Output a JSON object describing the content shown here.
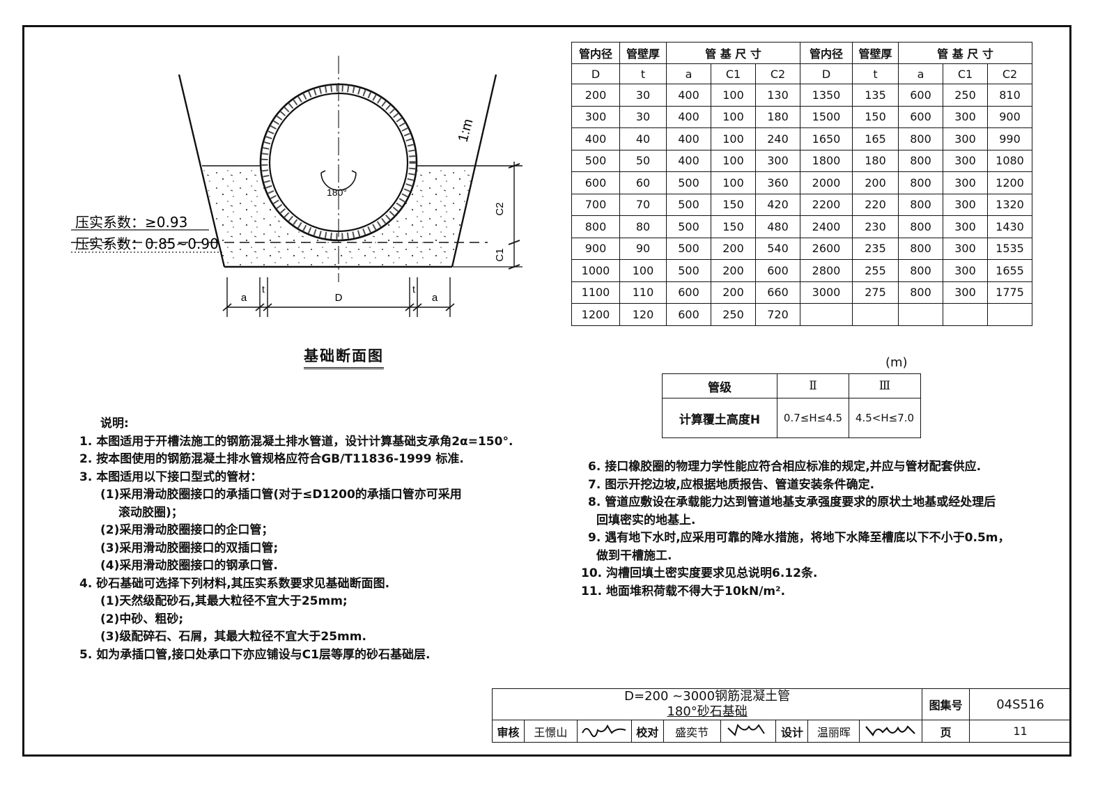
{
  "section_drawing": {
    "caption": "基础断面图",
    "slope_label": "1:m",
    "angle_label": "180°",
    "compaction_upper": "压实系数：≥0.93",
    "compaction_lower": "压实系数：0.85~0.90",
    "dim_a": "a",
    "dim_t": "t",
    "dim_D": "D",
    "dim_C1": "C1",
    "dim_C2": "C2"
  },
  "dims_table": {
    "header": {
      "inner_dia": "管内径",
      "wall": "管壁厚",
      "base": "管 基 尺 寸",
      "D": "D",
      "t": "t",
      "a": "a",
      "C1": "C1",
      "C2": "C2"
    },
    "rows": [
      [
        "200",
        "30",
        "400",
        "100",
        "130",
        "1350",
        "135",
        "600",
        "250",
        "810"
      ],
      [
        "300",
        "30",
        "400",
        "100",
        "180",
        "1500",
        "150",
        "600",
        "300",
        "900"
      ],
      [
        "400",
        "40",
        "400",
        "100",
        "240",
        "1650",
        "165",
        "800",
        "300",
        "990"
      ],
      [
        "500",
        "50",
        "400",
        "100",
        "300",
        "1800",
        "180",
        "800",
        "300",
        "1080"
      ],
      [
        "600",
        "60",
        "500",
        "100",
        "360",
        "2000",
        "200",
        "800",
        "300",
        "1200"
      ],
      [
        "700",
        "70",
        "500",
        "150",
        "420",
        "2200",
        "220",
        "800",
        "300",
        "1320"
      ],
      [
        "800",
        "80",
        "500",
        "150",
        "480",
        "2400",
        "230",
        "800",
        "300",
        "1430"
      ],
      [
        "900",
        "90",
        "500",
        "200",
        "540",
        "2600",
        "235",
        "800",
        "300",
        "1535"
      ],
      [
        "1000",
        "100",
        "500",
        "200",
        "600",
        "2800",
        "255",
        "800",
        "300",
        "1655"
      ],
      [
        "1100",
        "110",
        "600",
        "200",
        "660",
        "3000",
        "275",
        "800",
        "300",
        "1775"
      ],
      [
        "1200",
        "120",
        "600",
        "250",
        "720",
        "",
        "",
        "",
        "",
        ""
      ]
    ]
  },
  "grade_table": {
    "unit": "(m)",
    "col_label": "管级",
    "grade_II": "Ⅱ",
    "grade_III": "Ⅲ",
    "row_label": "计算覆土高度H",
    "range_II": "0.7≤H≤4.5",
    "range_III": "4.5<H≤7.0"
  },
  "notes_left": {
    "title": "说明:",
    "n1": "1. 本图适用于开槽法施工的钢筋混凝土排水管道，设计计算基础支承角2α=150°.",
    "n2": "2. 按本图使用的钢筋混凝土排水管规格应符合GB/T11836-1999 标准.",
    "n3": "3. 本图适用以下接口型式的管材：",
    "n3_1": "(1)采用滑动胶圈接口的承插口管(对于≤D1200的承插口管亦可采用",
    "n3_1b": "滚动胶圈)；",
    "n3_2": "(2)采用滑动胶圈接口的企口管；",
    "n3_3": "(3)采用滑动胶圈接口的双插口管;",
    "n3_4": "(4)采用滑动胶圈接口的钢承口管.",
    "n4": "4. 砂石基础可选择下列材料,其压实系数要求见基础断面图.",
    "n4_1": "(1)天然级配砂石,其最大粒径不宜大于25mm;",
    "n4_2": "(2)中砂、粗砂;",
    "n4_3": "(3)级配碎石、石屑，其最大粒径不宜大于25mm.",
    "n5": "5. 如为承插口管,接口处承口下亦应铺设与C1层等厚的砂石基础层."
  },
  "notes_right": {
    "n6": "6. 接口橡胶圈的物理力学性能应符合相应标准的规定,并应与管材配套供应.",
    "n7": "7. 图示开挖边坡,应根据地质报告、管道安装条件确定.",
    "n8": "8. 管道应敷设在承载能力达到管道地基支承强度要求的原状土地基或经处理后",
    "n8b": "回填密实的地基上.",
    "n9": "9. 遇有地下水时,应采用可靠的降水措施，将地下水降至槽底以下不小于0.5m，",
    "n9b": "做到干槽施工.",
    "n10": "10. 沟槽回填土密实度要求见总说明6.12条.",
    "n11": "11. 地面堆积荷载不得大于10kN/m²."
  },
  "title_block": {
    "title_line1": "D=200 ~3000钢筋混凝土管",
    "title_line2": "180°砂石基础",
    "atlas_label": "图集号",
    "atlas_no": "04S516",
    "page_label": "页",
    "page_no": "11",
    "review_label": "审核",
    "reviewer": "王憬山",
    "check_label": "校对",
    "checker": "盛奕节",
    "design_label": "设计",
    "designer": "温丽晖"
  }
}
